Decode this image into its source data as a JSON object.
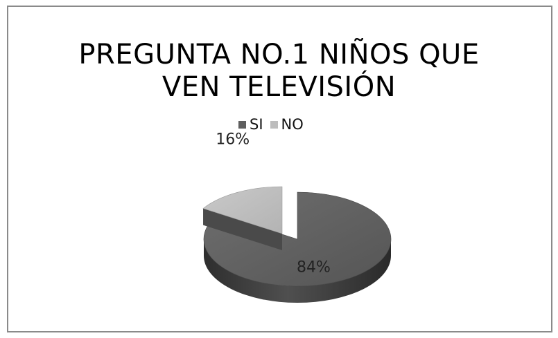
{
  "chart_data": {
    "type": "pie",
    "title_lines": [
      "PREGUNTA NO.1   NIÑOS QUE",
      "VEN TELEVISIÓN"
    ],
    "categories": [
      "SI",
      "NO"
    ],
    "values": [
      84,
      16
    ],
    "data_labels": [
      "84%",
      "16%"
    ],
    "colors": [
      "#5f5f5f",
      "#bdbdbd"
    ],
    "style": "3d-exploded",
    "legend_position": "top"
  }
}
